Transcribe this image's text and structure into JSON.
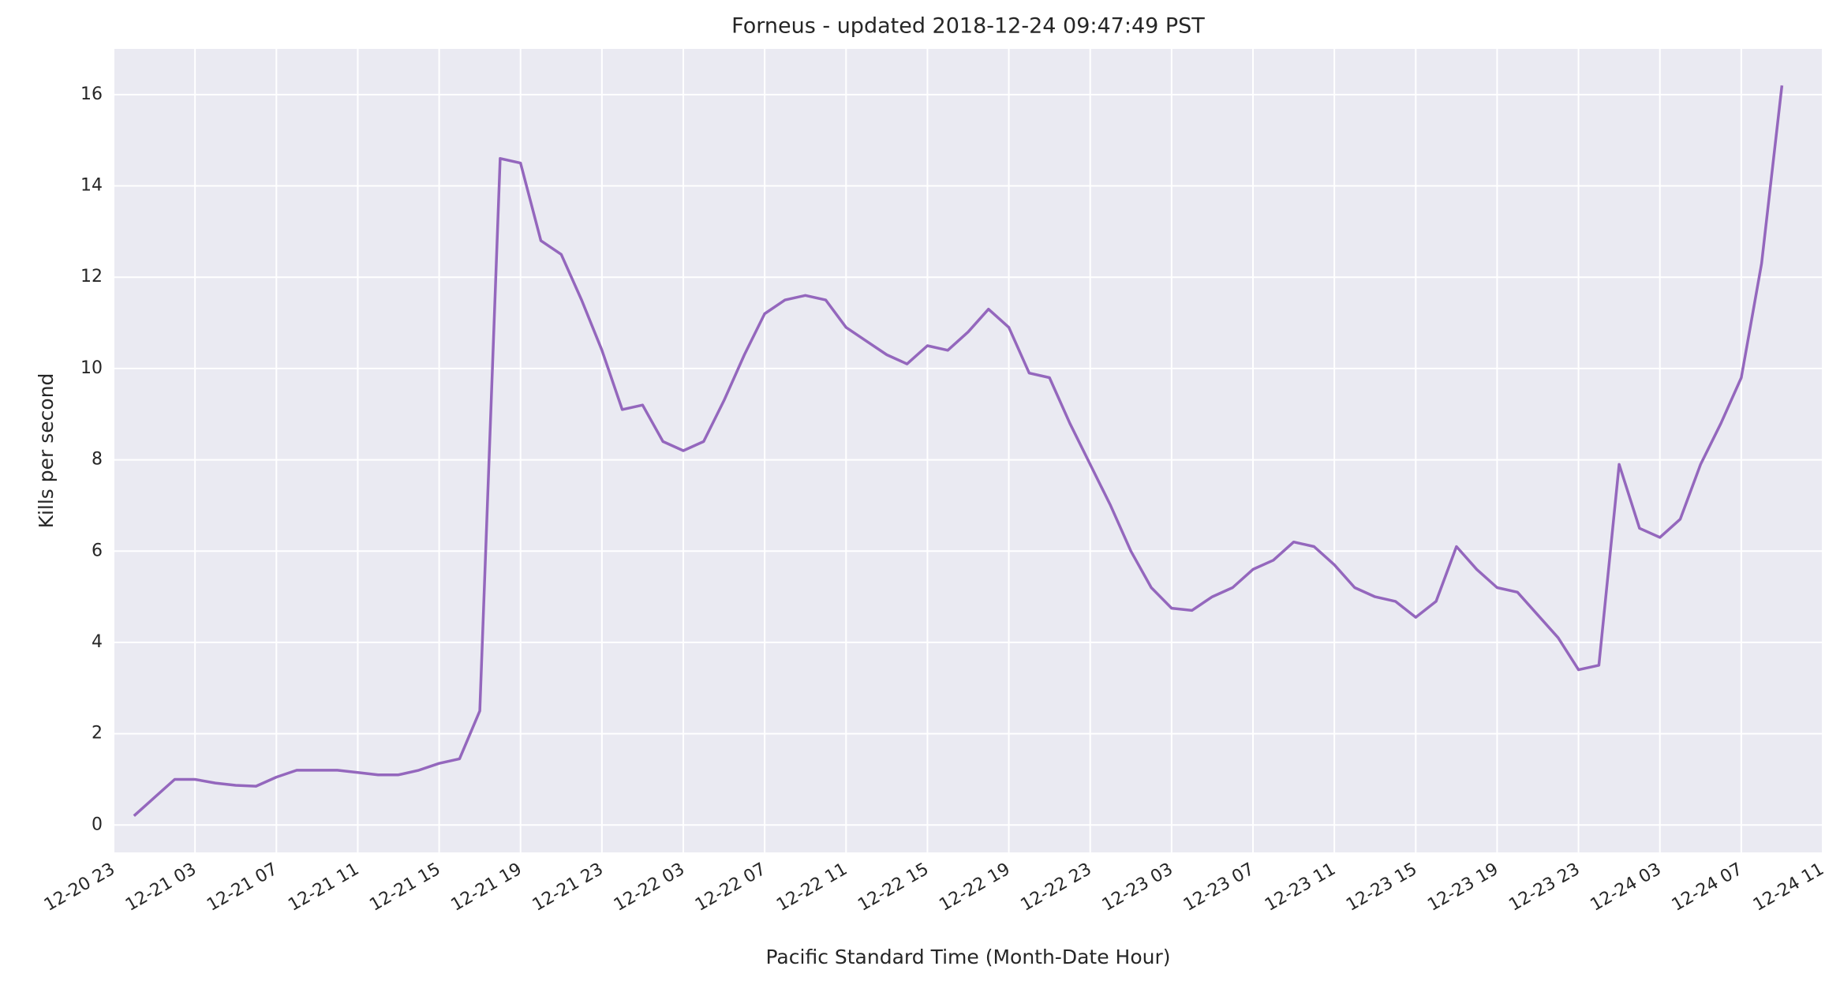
{
  "chart_data": {
    "type": "line",
    "title": "Forneus - updated 2018-12-24 09:47:49 PST",
    "xlabel": "Pacific Standard Time (Month-Date Hour)",
    "ylabel": "Kills per second",
    "x": [
      "12-21 00",
      "12-21 01",
      "12-21 02",
      "12-21 03",
      "12-21 04",
      "12-21 05",
      "12-21 06",
      "12-21 07",
      "12-21 08",
      "12-21 09",
      "12-21 10",
      "12-21 11",
      "12-21 12",
      "12-21 13",
      "12-21 14",
      "12-21 15",
      "12-21 16",
      "12-21 17",
      "12-21 18",
      "12-21 19",
      "12-21 20",
      "12-21 21",
      "12-21 22",
      "12-21 23",
      "12-22 00",
      "12-22 01",
      "12-22 02",
      "12-22 03",
      "12-22 04",
      "12-22 05",
      "12-22 06",
      "12-22 07",
      "12-22 08",
      "12-22 09",
      "12-22 10",
      "12-22 11",
      "12-22 12",
      "12-22 13",
      "12-22 14",
      "12-22 15",
      "12-22 16",
      "12-22 17",
      "12-22 18",
      "12-22 19",
      "12-22 20",
      "12-22 21",
      "12-22 22",
      "12-22 23",
      "12-23 00",
      "12-23 01",
      "12-23 02",
      "12-23 03",
      "12-23 04",
      "12-23 05",
      "12-23 06",
      "12-23 07",
      "12-23 08",
      "12-23 09",
      "12-23 10",
      "12-23 11",
      "12-23 12",
      "12-23 13",
      "12-23 14",
      "12-23 15",
      "12-23 16",
      "12-23 17",
      "12-23 18",
      "12-23 19",
      "12-23 20",
      "12-23 21",
      "12-23 22",
      "12-23 23",
      "12-24 00",
      "12-24 01",
      "12-24 02",
      "12-24 03",
      "12-24 04",
      "12-24 05",
      "12-24 06",
      "12-24 07",
      "12-24 08",
      "12-24 09"
    ],
    "series": [
      {
        "name": "Kills per second",
        "color": "#9467bd",
        "values": [
          0.2,
          0.6,
          1.0,
          1.0,
          0.92,
          0.87,
          0.85,
          1.05,
          1.2,
          1.2,
          1.2,
          1.15,
          1.1,
          1.1,
          1.2,
          1.35,
          1.45,
          2.5,
          14.6,
          14.5,
          12.8,
          12.5,
          11.5,
          10.4,
          9.1,
          9.2,
          8.4,
          8.2,
          8.4,
          9.3,
          10.3,
          11.2,
          11.5,
          11.6,
          11.5,
          10.9,
          10.6,
          10.3,
          10.1,
          10.5,
          10.4,
          10.8,
          11.3,
          10.9,
          9.9,
          9.8,
          8.8,
          7.9,
          7.0,
          6.0,
          5.2,
          4.75,
          4.7,
          5.0,
          5.2,
          5.6,
          5.8,
          6.2,
          6.1,
          5.7,
          5.2,
          5.0,
          4.9,
          4.55,
          4.9,
          6.1,
          5.6,
          5.2,
          5.1,
          4.6,
          4.1,
          3.4,
          3.5,
          7.9,
          6.5,
          6.3,
          6.7,
          7.9,
          8.8,
          9.8,
          12.3,
          16.2
        ]
      }
    ],
    "xlim": [
      "12-20 23",
      "12-24 11"
    ],
    "xticks": [
      "12-20 23",
      "12-21 03",
      "12-21 07",
      "12-21 11",
      "12-21 15",
      "12-21 19",
      "12-21 23",
      "12-22 03",
      "12-22 07",
      "12-22 11",
      "12-22 15",
      "12-22 19",
      "12-22 23",
      "12-23 03",
      "12-23 07",
      "12-23 11",
      "12-23 15",
      "12-23 19",
      "12-23 23",
      "12-24 03",
      "12-24 07",
      "12-24 11"
    ],
    "ylim": [
      -0.6,
      17.0
    ],
    "yticks": [
      0,
      2,
      4,
      6,
      8,
      10,
      12,
      14,
      16
    ],
    "grid": true
  }
}
